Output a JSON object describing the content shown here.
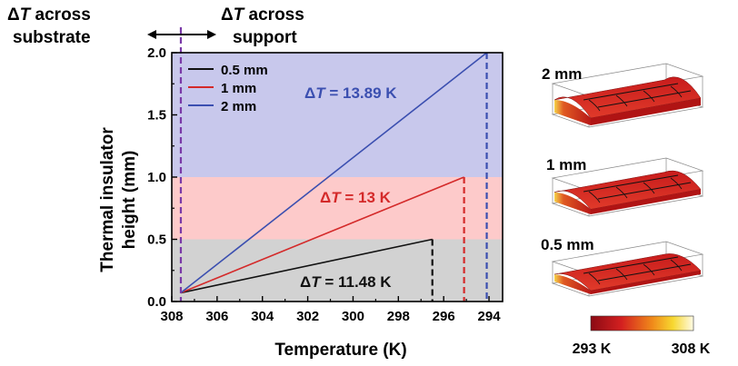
{
  "chart_data": {
    "type": "line",
    "xlabel": "Temperature (K)",
    "ylabel_line1": "Thermal insulator",
    "ylabel_line2": "height (mm)",
    "xlim": [
      308,
      293.4
    ],
    "ylim": [
      0,
      2.0
    ],
    "x_reversed": true,
    "xticks": [
      308,
      306,
      304,
      302,
      300,
      298,
      296,
      294
    ],
    "yticks": [
      0.0,
      0.5,
      1.0,
      1.5,
      2.0
    ],
    "series": [
      {
        "name": "0.5 mm",
        "color": "#111111",
        "x": [
          307.6,
          296.5
        ],
        "y": [
          0.07,
          0.5
        ],
        "end_x": 296.5
      },
      {
        "name": "1 mm",
        "color": "#d42a2a",
        "x": [
          307.6,
          295.1
        ],
        "y": [
          0.07,
          1.0
        ],
        "end_x": 295.1
      },
      {
        "name": "2 mm",
        "color": "#3b4fb0",
        "x": [
          307.6,
          294.1
        ],
        "y": [
          0.07,
          2.0
        ],
        "end_x": 294.1
      }
    ],
    "bands": [
      {
        "y0": 0.0,
        "y1": 0.5,
        "color": "#d2d2d2"
      },
      {
        "y0": 0.5,
        "y1": 1.0,
        "color": "#fdcaca"
      },
      {
        "y0": 1.0,
        "y1": 2.0,
        "color": "#c8c8ec"
      }
    ],
    "substrate_line_x": 307.6,
    "annotations": [
      {
        "prefix": "Δ",
        "var": "T",
        "text": " = 13.89 K",
        "color": "#3b4fb0"
      },
      {
        "prefix": "Δ",
        "var": "T",
        "text": " = 13 K",
        "color": "#d42a2a"
      },
      {
        "prefix": "Δ",
        "var": "T",
        "text": " = 11.48 K",
        "color": "#111111"
      }
    ],
    "top_labels": {
      "left_line1_prefix": "Δ",
      "left_line1_var": "T",
      "left_line1_rest": " across",
      "left_line2": "substrate",
      "right_line1_prefix": "Δ",
      "right_line1_var": "T",
      "right_line1_rest": " across",
      "right_line2": "support"
    },
    "insets": [
      {
        "label": "2 mm"
      },
      {
        "label": "1 mm"
      },
      {
        "label": "0.5 mm"
      }
    ],
    "colorbar": {
      "min_label": "293 K",
      "max_label": "308 K",
      "colors": [
        "#8b0a14",
        "#d42020",
        "#f08a1a",
        "#f7d830",
        "#fffbe6"
      ]
    }
  }
}
